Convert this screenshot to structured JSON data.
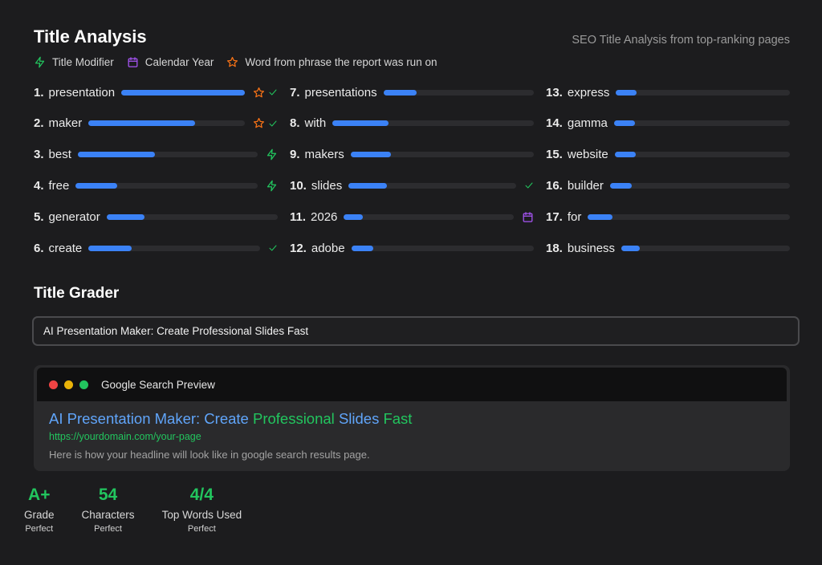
{
  "header": {
    "title": "Title Analysis",
    "subtitle": "SEO Title Analysis from top-ranking pages"
  },
  "legend": [
    {
      "icon": "bolt-icon",
      "label": "Title Modifier",
      "color": "#22c55e"
    },
    {
      "icon": "calendar-icon",
      "label": "Calendar Year",
      "color": "#a855f7"
    },
    {
      "icon": "star-icon",
      "label": "Word from phrase the report was run on",
      "color": "#f97316"
    }
  ],
  "keywords": [
    {
      "num": "1.",
      "word": "presentation",
      "score": 1.0,
      "icons": [
        "star-icon",
        "check-icon"
      ]
    },
    {
      "num": "2.",
      "word": "maker",
      "score": 0.68,
      "icons": [
        "star-icon",
        "check-icon"
      ]
    },
    {
      "num": "3.",
      "word": "best",
      "score": 0.43,
      "icons": [
        "bolt-icon"
      ]
    },
    {
      "num": "4.",
      "word": "free",
      "score": 0.23,
      "icons": [
        "bolt-icon"
      ]
    },
    {
      "num": "5.",
      "word": "generator",
      "score": 0.22,
      "icons": []
    },
    {
      "num": "6.",
      "word": "create",
      "score": 0.25,
      "icons": [
        "check-icon"
      ]
    },
    {
      "num": "7.",
      "word": "presentations",
      "score": 0.22,
      "icons": []
    },
    {
      "num": "8.",
      "word": "with",
      "score": 0.28,
      "icons": []
    },
    {
      "num": "9.",
      "word": "makers",
      "score": 0.22,
      "icons": []
    },
    {
      "num": "10.",
      "word": "slides",
      "score": 0.23,
      "icons": [
        "check-icon"
      ]
    },
    {
      "num": "11.",
      "word": "2026",
      "score": 0.11,
      "icons": [
        "calendar-icon"
      ]
    },
    {
      "num": "12.",
      "word": "adobe",
      "score": 0.12,
      "icons": []
    },
    {
      "num": "13.",
      "word": "express",
      "score": 0.12,
      "icons": []
    },
    {
      "num": "14.",
      "word": "gamma",
      "score": 0.12,
      "icons": []
    },
    {
      "num": "15.",
      "word": "website",
      "score": 0.12,
      "icons": []
    },
    {
      "num": "16.",
      "word": "builder",
      "score": 0.12,
      "icons": []
    },
    {
      "num": "17.",
      "word": "for",
      "score": 0.12,
      "icons": []
    },
    {
      "num": "18.",
      "word": "business",
      "score": 0.11,
      "icons": []
    }
  ],
  "grader": {
    "title": "Title Grader",
    "input_value": "AI Presentation Maker: Create Professional Slides Fast"
  },
  "preview": {
    "label": "Google Search Preview",
    "headline_parts": [
      {
        "text": "AI Presentation Maker: Create ",
        "color": "#60a5fa"
      },
      {
        "text": "Professional ",
        "color": "#22c55e"
      },
      {
        "text": "Slides ",
        "color": "#60a5fa"
      },
      {
        "text": "Fast",
        "color": "#22c55e"
      }
    ],
    "url": "https://yourdomain.com/your-page",
    "description": "Here is how your headline will look like in google search results page."
  },
  "stats": [
    {
      "value": "A+",
      "label": "Grade",
      "sub": "Perfect"
    },
    {
      "value": "54",
      "label": "Characters",
      "sub": "Perfect"
    },
    {
      "value": "4/4",
      "label": "Top Words Used",
      "sub": "Perfect"
    }
  ],
  "colors": {
    "accent_bar": "#3b82f6",
    "success": "#22c55e",
    "star": "#f97316",
    "calendar": "#a855f7",
    "window_dots": [
      "#ef4444",
      "#eab308",
      "#22c55e"
    ]
  }
}
